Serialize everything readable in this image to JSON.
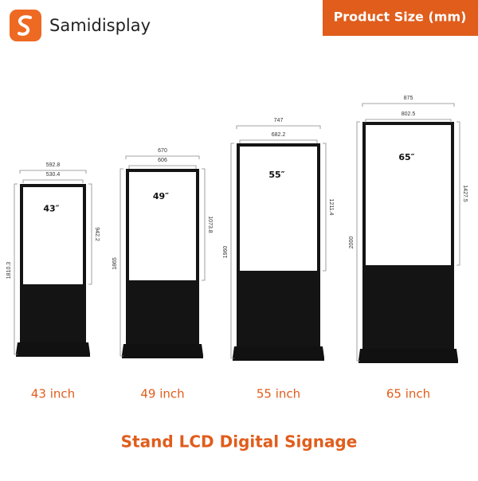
{
  "header": {
    "brand": "Samidisplay",
    "badge": "Product Size (mm)"
  },
  "products": [
    {
      "screen_label": "43″",
      "outer_width": "592.8",
      "screen_width": "530.4",
      "total_height": "1810.3",
      "screen_height": "942.2",
      "name": "43 inch"
    },
    {
      "screen_label": "49″",
      "outer_width": "670",
      "screen_width": "606",
      "total_height": "1865",
      "screen_height": "1073.8",
      "name": "49 inch"
    },
    {
      "screen_label": "55″",
      "outer_width": "747",
      "screen_width": "682.2",
      "total_height": "1960",
      "screen_height": "1211.4",
      "name": "55 inch"
    },
    {
      "screen_label": "65″",
      "outer_width": "875",
      "screen_width": "802.5",
      "total_height": "2000",
      "screen_height": "1427.5",
      "name": "65 inch"
    }
  ],
  "caption": "Stand LCD Digital Signage"
}
